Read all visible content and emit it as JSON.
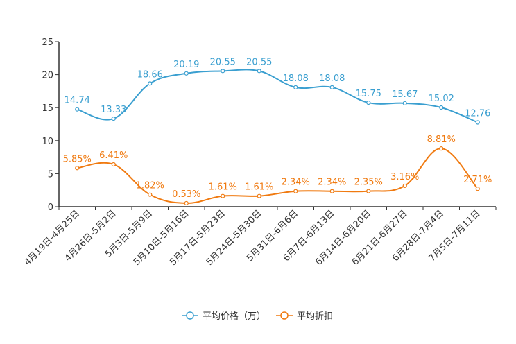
{
  "chart_data": {
    "type": "line",
    "title": "",
    "xlabel": "",
    "ylabel": "",
    "ylim": [
      0,
      25
    ],
    "yticks": [
      0,
      5,
      10,
      15,
      20,
      25
    ],
    "grid": false,
    "legend_position": "bottom-center",
    "categories": [
      "4月19日-4月25日",
      "4月26日-5月2日",
      "5月3日-5月9日",
      "5月10日-5月16日",
      "5月17日-5月23日",
      "5月24日-5月30日",
      "5月31日-6月6日",
      "6月7日-6月13日",
      "6月14日-6月20日",
      "6月21日-6月27日",
      "6月28日-7月4日",
      "7月5日-7月11日"
    ],
    "series": [
      {
        "name": "平均价格（万）",
        "color": "#3a9fd0",
        "values": [
          14.74,
          13.33,
          18.66,
          20.19,
          20.55,
          20.55,
          18.08,
          18.08,
          15.75,
          15.67,
          15.02,
          12.76
        ],
        "labels": [
          "14.74",
          "13.33",
          "18.66",
          "20.19",
          "20.55",
          "20.55",
          "18.08",
          "18.08",
          "15.75",
          "15.67",
          "15.02",
          "12.76"
        ]
      },
      {
        "name": "平均折扣",
        "color": "#f07a10",
        "values": [
          5.85,
          6.41,
          1.82,
          0.53,
          1.61,
          1.61,
          2.34,
          2.34,
          2.35,
          3.16,
          8.81,
          2.71
        ],
        "labels": [
          "5.85%",
          "6.41%",
          "1.82%",
          "0.53%",
          "1.61%",
          "1.61%",
          "2.34%",
          "2.34%",
          "2.35%",
          "3.16%",
          "8.81%",
          "2.71%"
        ]
      }
    ]
  }
}
